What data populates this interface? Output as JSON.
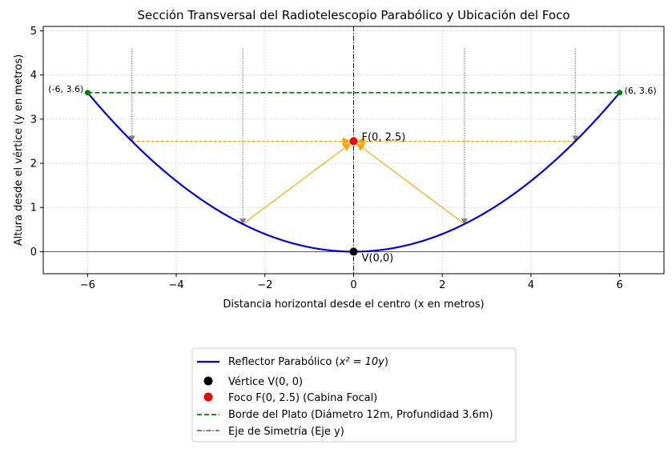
{
  "chart_data": {
    "type": "line",
    "title": "Sección Transversal del Radiotelescopio Parabólico y Ubicación del Foco",
    "xlabel": "Distancia horizontal desde el centro (x en metros)",
    "ylabel": "Altura desde el vértice (y en metros)",
    "xlim": [
      -7,
      7
    ],
    "ylim": [
      -0.5,
      5.1
    ],
    "xticks": [
      -6,
      -4,
      -2,
      0,
      2,
      4,
      6
    ],
    "yticks": [
      0,
      1,
      2,
      3,
      4,
      5
    ],
    "xtick_labels": [
      "−6",
      "−4",
      "−2",
      "0",
      "2",
      "4",
      "6"
    ],
    "ytick_labels": [
      "0",
      "1",
      "2",
      "3",
      "4",
      "5"
    ],
    "grid": true,
    "legend_position": "below-center",
    "parabola": {
      "name_prefix": "Reflector Parabólico (",
      "name_math": "x² = 10y",
      "name_suffix": ")",
      "coefficient_a": 10,
      "x_range": [
        -6,
        6
      ],
      "color": "#0000ee"
    },
    "vertex": {
      "x": 0,
      "y": 0,
      "label": "V(0,0)",
      "legend": "Vértice V(0, 0)",
      "color": "#000000"
    },
    "focus": {
      "x": 0,
      "y": 2.5,
      "label": "F(0, 2.5)",
      "legend": "Foco F(0, 2.5) (Cabina Focal)",
      "color": "#ff0000"
    },
    "rim": {
      "legend": "Borde del Plato (Diámetro 12m, Profundidad 3.6m)",
      "color": "#008000",
      "points": [
        {
          "x": -6,
          "y": 3.6,
          "label": "(-6, 3.6)"
        },
        {
          "x": 6,
          "y": 3.6,
          "label": "(6, 3.6)"
        }
      ]
    },
    "axis_of_symmetry": {
      "x": 0,
      "legend": "Eje de Simetría (Eje y)",
      "color": "#000000"
    },
    "incoming_rays": {
      "color": "#808080",
      "x": [
        -5,
        -2.5,
        2.5,
        5
      ],
      "y_start": 4.6
    },
    "reflected_rays": {
      "color": "#ffa500",
      "x": [
        -5,
        -2.5,
        2.5,
        5
      ]
    }
  }
}
